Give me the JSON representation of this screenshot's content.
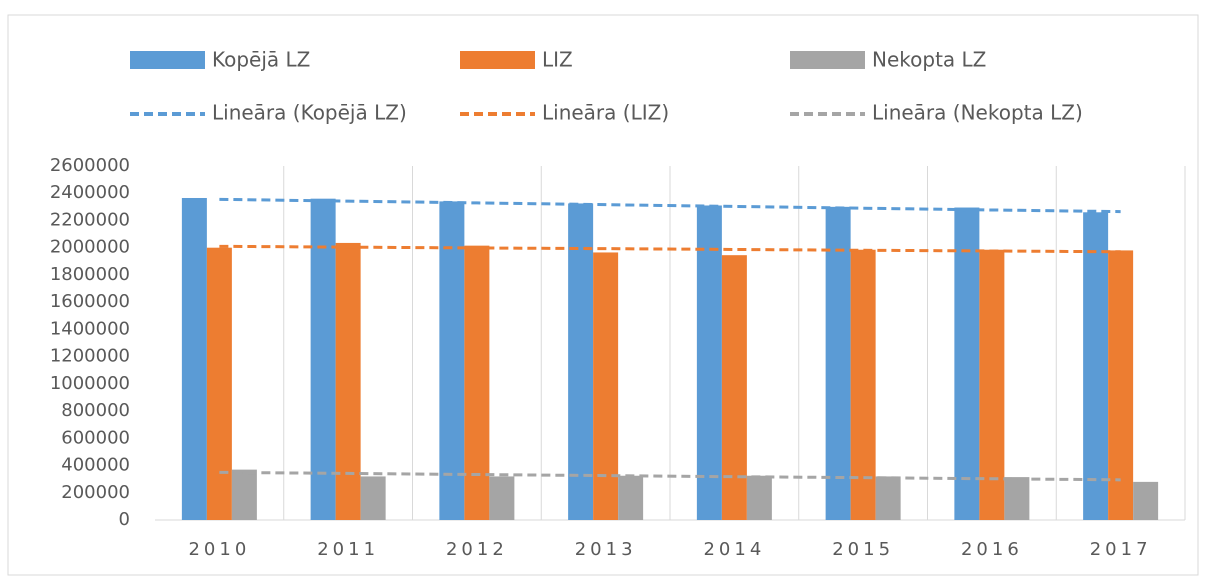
{
  "chart_data": {
    "type": "bar",
    "categories": [
      "2010",
      "2011",
      "2012",
      "2013",
      "2014",
      "2015",
      "2016",
      "2017"
    ],
    "series": [
      {
        "name": "Kopējā LZ",
        "color": "#5b9bd5",
        "values": [
          2365000,
          2360000,
          2340000,
          2325000,
          2310000,
          2300000,
          2295000,
          2260000
        ]
      },
      {
        "name": "LIZ",
        "color": "#ed7d31",
        "values": [
          2000000,
          2035000,
          2015000,
          1965000,
          1945000,
          1985000,
          1985000,
          1980000
        ]
      },
      {
        "name": "Nekopta LZ",
        "color": "#a5a5a5",
        "values": [
          370000,
          320000,
          320000,
          325000,
          325000,
          320000,
          315000,
          280000
        ]
      },
      {
        "name": "Lineāra (Kopējā LZ)",
        "color": "#5b9bd5",
        "style": "dashed-line",
        "values": [
          2355000,
          2342000,
          2329000,
          2316000,
          2303000,
          2290000,
          2277000,
          2265000
        ]
      },
      {
        "name": "Lineāra (LIZ)",
        "color": "#ed7d31",
        "style": "dashed-line",
        "values": [
          2010000,
          2004000,
          1998000,
          1993000,
          1987000,
          1981000,
          1976000,
          1970000
        ]
      },
      {
        "name": "Lineāra (Nekopta LZ)",
        "color": "#a5a5a5",
        "style": "dashed-line",
        "values": [
          350000,
          342000,
          334000,
          326000,
          318000,
          311000,
          303000,
          295000
        ]
      }
    ],
    "ylim": [
      0,
      2600000
    ],
    "yticks": [
      0,
      200000,
      400000,
      600000,
      800000,
      1000000,
      1200000,
      1400000,
      1600000,
      1800000,
      2000000,
      2200000,
      2400000,
      2600000
    ],
    "grid": "vertical"
  }
}
